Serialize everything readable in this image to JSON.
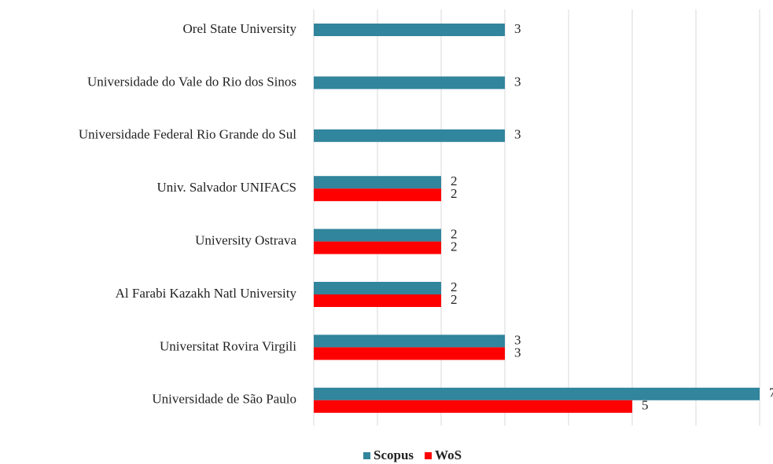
{
  "chart_data": {
    "type": "hbar",
    "categories": [
      "Orel State University",
      "Universidade do Vale do Rio dos Sinos",
      "Universidade Federal Rio Grande do Sul",
      "Univ. Salvador UNIFACS",
      "University Ostrava",
      "Al Farabi Kazakh  Natl University",
      "Universitat Rovira Virgili",
      "Universidade de São Paulo"
    ],
    "series": [
      {
        "name": "Scopus",
        "color": "#31859c",
        "values": [
          3,
          3,
          3,
          2,
          2,
          2,
          3,
          7
        ]
      },
      {
        "name": "WoS",
        "color": "#ff0000",
        "values": [
          null,
          null,
          null,
          2,
          2,
          2,
          3,
          5
        ]
      }
    ],
    "xlim": [
      0,
      7
    ],
    "xticks": [
      0,
      1,
      2,
      3,
      4,
      5,
      6,
      7
    ],
    "grid": true,
    "legend": "bottom"
  }
}
